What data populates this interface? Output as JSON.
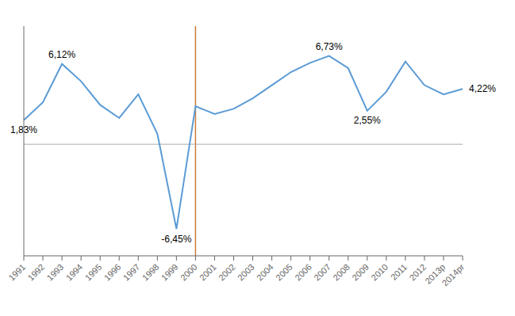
{
  "chart_data": {
    "type": "line",
    "categories": [
      "1991",
      "1992",
      "1993",
      "1994",
      "1995",
      "1996",
      "1997",
      "1998",
      "1999",
      "2000",
      "2001",
      "2002",
      "2003",
      "2004",
      "2005",
      "2006",
      "2007",
      "2008",
      "2009",
      "2010",
      "2011",
      "2012",
      "2013p",
      "2014pr"
    ],
    "values": [
      1.83,
      3.2,
      6.12,
      4.8,
      3.0,
      2.0,
      3.8,
      0.8,
      -6.45,
      2.9,
      2.3,
      2.7,
      3.5,
      4.5,
      5.5,
      6.2,
      6.73,
      5.8,
      2.55,
      4.0,
      6.3,
      4.5,
      3.8,
      4.22
    ],
    "color": "#5B9BD5",
    "ylim": [
      -8.5,
      9.0
    ],
    "tick_labels": "x",
    "grid": false,
    "annotations": [
      {
        "text": "1,83%",
        "x": "1991",
        "y": 1.83
      },
      {
        "text": "6,12%",
        "x": "1993",
        "y": 6.12
      },
      {
        "text": "-6,45%",
        "x": "1999",
        "y": -6.45
      },
      {
        "text": "6,73%",
        "x": "2007",
        "y": 6.73
      },
      {
        "text": "2,55%",
        "x": "2009",
        "y": 2.55
      },
      {
        "text": "4,22%",
        "x": "2014pr",
        "y": 4.22
      }
    ],
    "reference_lines": [
      {
        "x": "2000",
        "color": "#C97D3A"
      },
      {
        "y": 0
      }
    ]
  }
}
